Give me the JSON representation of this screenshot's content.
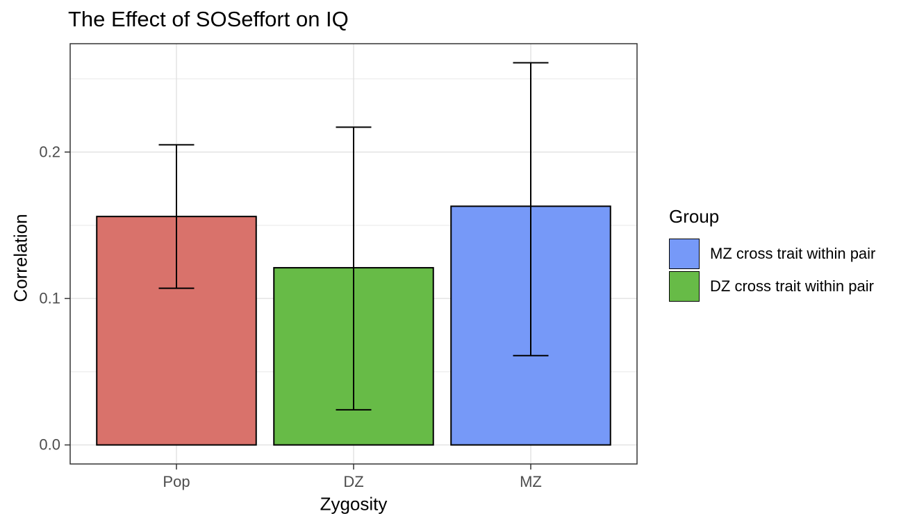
{
  "chart_data": {
    "type": "bar",
    "title": "The Effect of SOSeffort on IQ",
    "xlabel": "Zygosity",
    "ylabel": "Correlation",
    "categories": [
      "Pop",
      "DZ",
      "MZ"
    ],
    "values": [
      0.156,
      0.121,
      0.163
    ],
    "error_low": [
      0.107,
      0.024,
      0.061
    ],
    "error_high": [
      0.205,
      0.217,
      0.261
    ],
    "bar_colors": [
      "#D9726B",
      "#67BB47",
      "#7699F8"
    ],
    "ylim": [
      -0.013,
      0.274
    ],
    "yticks": [
      0.0,
      0.1,
      0.2
    ],
    "ytick_labels": [
      "0.0",
      "0.1",
      "0.2"
    ],
    "yticks_minor": [
      0.05,
      0.15,
      0.25
    ],
    "grid": "on",
    "legend_position": "right",
    "legend": {
      "title": "Group",
      "entries": [
        {
          "label": "MZ cross trait within pair",
          "color": "#7699F8"
        },
        {
          "label": "DZ cross trait within pair",
          "color": "#67BB47"
        }
      ]
    },
    "style_colors": {
      "panel_border": "#333333",
      "grid_major": "#E3E3E3",
      "grid_minor": "#EFEFEF",
      "tick_label": "#4D4D4D",
      "bar_stroke": "#000000",
      "errorbar": "#000000"
    }
  }
}
